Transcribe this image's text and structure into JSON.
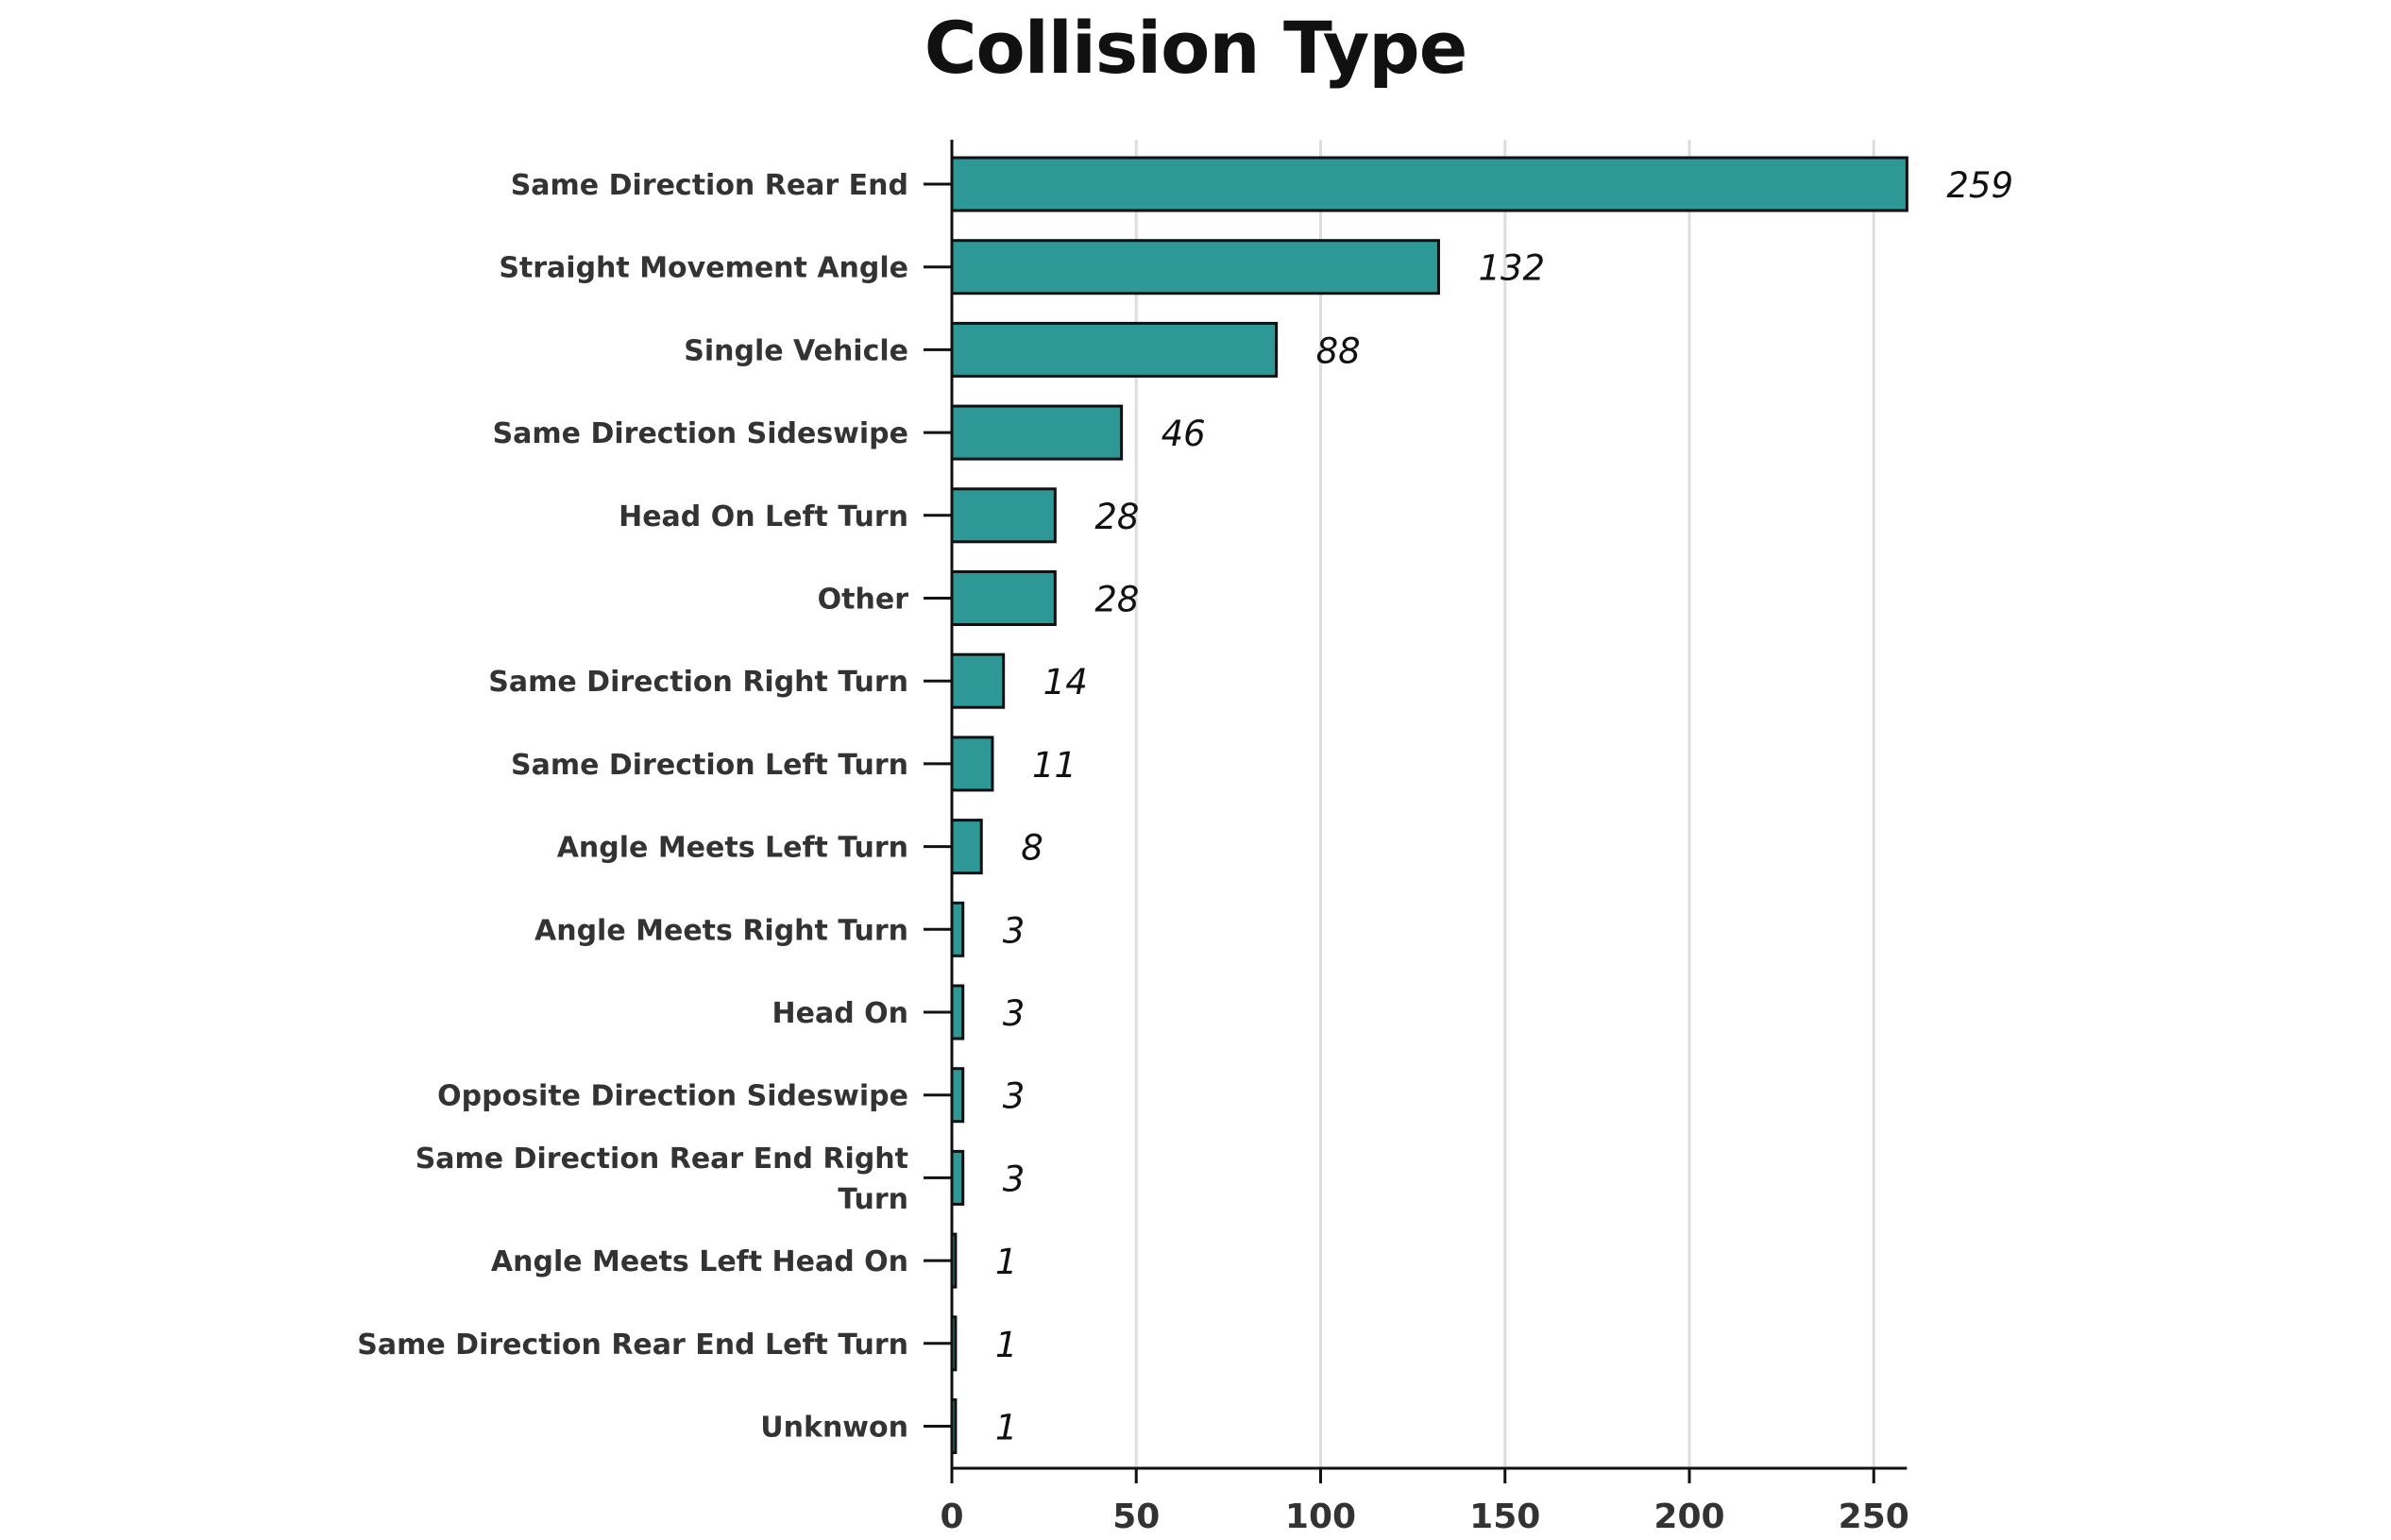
{
  "chart_data": {
    "type": "bar",
    "orientation": "horizontal",
    "title": "Collision Type",
    "xlabel": "",
    "ylabel": "",
    "xlim": [
      0,
      259
    ],
    "xticks": [
      0,
      50,
      100,
      150,
      200,
      250
    ],
    "grid": "vertical",
    "bar_color": "#2e9896",
    "bar_edge_color": "#111111",
    "categories": [
      [
        "Same Direction Rear End"
      ],
      [
        "Straight Movement Angle"
      ],
      [
        "Single Vehicle"
      ],
      [
        "Same Direction Sideswipe"
      ],
      [
        "Head On Left Turn"
      ],
      [
        "Other"
      ],
      [
        "Same Direction Right Turn"
      ],
      [
        "Same Direction Left Turn"
      ],
      [
        "Angle Meets Left Turn"
      ],
      [
        "Angle Meets Right Turn"
      ],
      [
        "Head On"
      ],
      [
        "Opposite Direction Sideswipe"
      ],
      [
        "Same Direction Rear End Right",
        "Turn"
      ],
      [
        "Angle Meets Left Head On"
      ],
      [
        "Same Direction Rear End Left Turn"
      ],
      [
        "Unknwon"
      ]
    ],
    "values": [
      259,
      132,
      88,
      46,
      28,
      28,
      14,
      11,
      8,
      3,
      3,
      3,
      3,
      1,
      1,
      1
    ]
  }
}
